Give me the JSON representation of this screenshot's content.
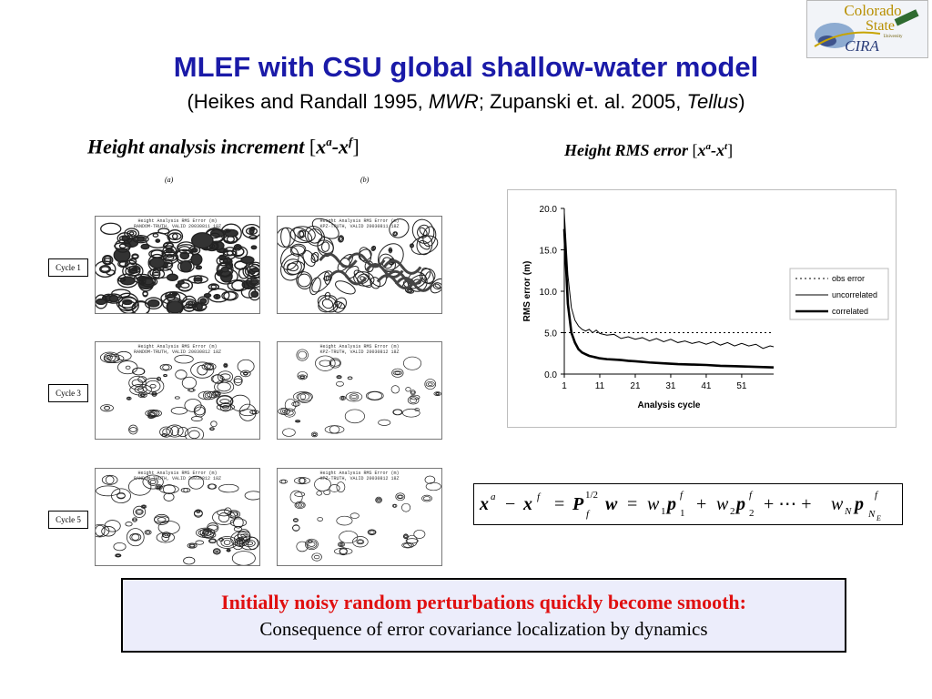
{
  "slide": {
    "title": "MLEF with CSU global shallow-water model",
    "subtitle": {
      "part1": "(Heikes and Randall 1995, ",
      "mwr": "MWR",
      "part2": "; Zupanski et. al. 2005, ",
      "tellus": "Tellus",
      "part3": ")"
    }
  },
  "logo": {
    "line1": "Colorado",
    "line2": "State",
    "line3": "University",
    "line4": "CIRA"
  },
  "left_panel": {
    "header": "Height analysis increment",
    "header_vars": [
      "x",
      "a",
      "-x",
      "f"
    ],
    "col_a": "(a)",
    "col_b": "(b)",
    "map_title_line1": "Height Analysis RMS Error (m)",
    "rows": [
      {
        "label": "Cycle 1",
        "a_sub": "RANDOM-TRUTH,  VALID 20030811 18Z",
        "b_sub": "KPZ-TRUTH,  VALID 20030811 18Z"
      },
      {
        "label": "Cycle 3",
        "a_sub": "RANDOM-TRUTH,  VALID 20030812 18Z",
        "b_sub": "KPZ-TRUTH,  VALID 20030812 18Z"
      },
      {
        "label": "Cycle 5",
        "a_sub": "RANDOM-TRUTH,  VALID 20030812 18Z",
        "b_sub": "KPZ-TRUTH,  VALID 20030812 18Z"
      }
    ]
  },
  "right_panel": {
    "header": "Height RMS error",
    "header_vars": [
      "x",
      "a",
      "-x",
      "t"
    ]
  },
  "chart_data": {
    "type": "line",
    "title": "",
    "xlabel": "Analysis cycle",
    "ylabel": "RMS error (m)",
    "xlim": [
      1,
      60
    ],
    "ylim": [
      0,
      20
    ],
    "xticks": [
      1,
      11,
      21,
      31,
      41,
      51
    ],
    "yticks": [
      "0.0",
      "5.0",
      "10.0",
      "15.0",
      "20.0"
    ],
    "grid": false,
    "legend_placement": "right",
    "series": [
      {
        "name": "obs error",
        "style": "dotted",
        "x": [
          1,
          60
        ],
        "y": [
          5,
          5
        ]
      },
      {
        "name": "uncorrelated",
        "style": "thin",
        "x": [
          1,
          2,
          3,
          4,
          5,
          6,
          7,
          8,
          9,
          10,
          11,
          13,
          15,
          17,
          19,
          21,
          23,
          25,
          27,
          29,
          31,
          33,
          35,
          37,
          39,
          41,
          43,
          45,
          47,
          49,
          51,
          53,
          55,
          57,
          59,
          60
        ],
        "y": [
          19.5,
          12,
          8,
          6.5,
          5.8,
          5.4,
          5.2,
          5.4,
          5.0,
          5.3,
          4.9,
          4.7,
          4.8,
          4.3,
          4.5,
          4.2,
          4.4,
          4.0,
          4.3,
          3.9,
          4.2,
          3.8,
          4.0,
          3.7,
          3.9,
          3.6,
          3.9,
          3.5,
          3.8,
          3.4,
          3.7,
          3.4,
          3.6,
          3.1,
          3.4,
          3.3
        ]
      },
      {
        "name": "correlated",
        "style": "thick",
        "x": [
          1,
          2,
          3,
          4,
          5,
          6,
          7,
          8,
          9,
          10,
          11,
          13,
          15,
          17,
          19,
          21,
          25,
          29,
          33,
          37,
          41,
          45,
          49,
          53,
          57,
          60
        ],
        "y": [
          17.5,
          8.5,
          5,
          3.8,
          3.0,
          2.6,
          2.4,
          2.2,
          2.1,
          2.0,
          1.9,
          1.8,
          1.75,
          1.7,
          1.6,
          1.55,
          1.4,
          1.3,
          1.2,
          1.15,
          1.1,
          1.0,
          0.95,
          0.9,
          0.85,
          0.8
        ]
      }
    ]
  },
  "equation": {
    "xa": "x",
    "a": "a",
    "minus": "−",
    "xf": "x",
    "f": "f",
    "eq1": "=",
    "P": "P",
    "half": "1/2",
    "Pf": "f",
    "w": "w",
    "eq2": "=",
    "w1": "w",
    "s1": "1",
    "p1": "p",
    "pf1": "f",
    "ps1": "1",
    "plus1": "+",
    "w2": "w",
    "s2": "2",
    "p2": "p",
    "pf2": "f",
    "ps2": "2",
    "plus2": "+ ⋯ +",
    "wN": "w",
    "sN": "N",
    "pN": "p",
    "pfN": "f",
    "psN": "N",
    "psE": "E"
  },
  "bottom_box": {
    "line1": "Initially noisy random perturbations quickly become smooth:",
    "line2": "Consequence of error covariance localization by dynamics"
  }
}
